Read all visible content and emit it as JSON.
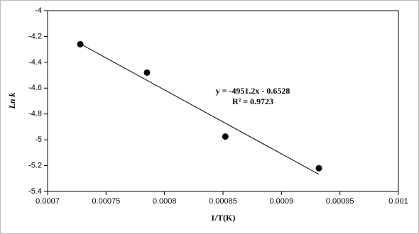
{
  "chart_data": {
    "type": "scatter",
    "x_label": "1/T(K)",
    "y_label": "Ln k",
    "x": [
      0.000728,
      0.000785,
      0.000852,
      0.000932
    ],
    "values": [
      -4.26,
      -4.48,
      -4.975,
      -5.22
    ],
    "color": "#000000",
    "xlim": [
      0.0007,
      0.001
    ],
    "xticks": [
      0.0007,
      0.00075,
      0.0008,
      0.00085,
      0.0009,
      0.00095,
      0.001
    ],
    "ylim": [
      -5.4,
      -4
    ],
    "yticks": [
      -5.4,
      -5.2,
      -5,
      -4.8,
      -4.6,
      -4.4,
      -4.2,
      -4
    ],
    "grid": false,
    "trendline": {
      "equation": "y = -4951.2x - 0.6528",
      "r_squared": "R² = 0.9723",
      "slope": -4951.2,
      "intercept": -0.6528
    }
  }
}
